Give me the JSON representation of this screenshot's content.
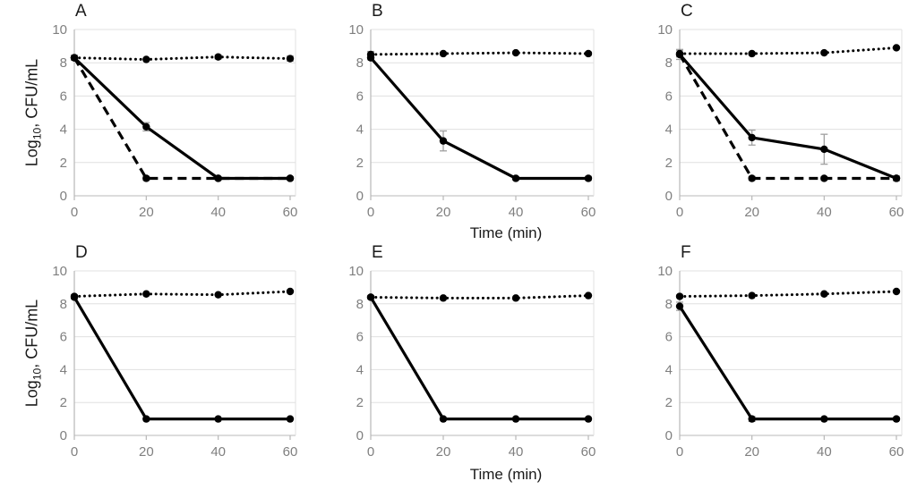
{
  "figure": {
    "background": "#ffffff",
    "ylabel_prefix": "Log",
    "ylabel_sub": "10",
    "ylabel_suffix": ", CFU/mL",
    "xlabel": "Time (min)"
  },
  "axes": {
    "ylim": [
      0,
      10
    ],
    "xlim": [
      0,
      60
    ],
    "yticks": [
      0,
      2,
      4,
      6,
      8,
      10
    ],
    "xticks": [
      0,
      20,
      40,
      60
    ],
    "grid": true,
    "tick_color": "#7f7f7f",
    "grid_color": "#e0e0e0",
    "axis_color": "#b8b8b8",
    "series_color": "#000000",
    "error_bar_color": "#a0a0a0"
  },
  "chart_data": [
    {
      "type": "line",
      "panel": "A",
      "x": [
        0,
        20,
        40,
        60
      ],
      "series": [
        {
          "name": "dotted-series",
          "style": "dotted",
          "values": [
            8.3,
            8.2,
            8.35,
            8.25
          ],
          "err": [
            0.15,
            0,
            0.12,
            0.15
          ]
        },
        {
          "name": "solid-series",
          "style": "solid",
          "values": [
            8.3,
            4.15,
            1.05,
            1.05
          ],
          "err": [
            0.15,
            0.25,
            0.1,
            0.1
          ]
        },
        {
          "name": "dashed-series",
          "style": "dashed",
          "values": [
            8.3,
            1.05,
            1.05,
            1.05
          ],
          "err": [
            0,
            0.12,
            0,
            0
          ]
        }
      ]
    },
    {
      "type": "line",
      "panel": "B",
      "x": [
        0,
        20,
        40,
        60
      ],
      "series": [
        {
          "name": "dotted-series",
          "style": "dotted",
          "values": [
            8.5,
            8.55,
            8.6,
            8.55
          ],
          "err": [
            0.18,
            0,
            0,
            0.1
          ]
        },
        {
          "name": "solid-series",
          "style": "solid",
          "values": [
            8.3,
            3.3,
            1.05,
            1.05
          ],
          "err": [
            0.12,
            0.6,
            0.1,
            0.12
          ]
        }
      ]
    },
    {
      "type": "line",
      "panel": "C",
      "x": [
        0,
        20,
        40,
        60
      ],
      "series": [
        {
          "name": "dotted-series",
          "style": "dotted",
          "values": [
            8.55,
            8.55,
            8.6,
            8.9
          ],
          "err": [
            0.2,
            0,
            0,
            0
          ]
        },
        {
          "name": "solid-series",
          "style": "solid",
          "values": [
            8.5,
            3.5,
            2.8,
            1.05
          ],
          "err": [
            0.3,
            0.45,
            0.9,
            0.15
          ]
        },
        {
          "name": "dashed-series",
          "style": "dashed",
          "values": [
            8.5,
            1.05,
            1.05,
            1.05
          ],
          "err": [
            0,
            0.12,
            0.1,
            0.1
          ]
        }
      ]
    },
    {
      "type": "line",
      "panel": "D",
      "x": [
        0,
        20,
        40,
        60
      ],
      "series": [
        {
          "name": "dotted-series",
          "style": "dotted",
          "values": [
            8.45,
            8.6,
            8.55,
            8.75
          ],
          "err": [
            0.1,
            0,
            0,
            0
          ]
        },
        {
          "name": "solid-series",
          "style": "solid",
          "values": [
            8.4,
            1.0,
            1.0,
            1.0
          ],
          "err": [
            0.1,
            0.08,
            0,
            0
          ]
        }
      ]
    },
    {
      "type": "line",
      "panel": "E",
      "x": [
        0,
        20,
        40,
        60
      ],
      "series": [
        {
          "name": "dotted-series",
          "style": "dotted",
          "values": [
            8.4,
            8.35,
            8.35,
            8.5
          ],
          "err": [
            0.1,
            0,
            0,
            0
          ]
        },
        {
          "name": "solid-series",
          "style": "solid",
          "values": [
            8.4,
            1.0,
            1.0,
            1.0
          ],
          "err": [
            0.1,
            0.08,
            0,
            0.08
          ]
        }
      ]
    },
    {
      "type": "line",
      "panel": "F",
      "x": [
        0,
        20,
        40,
        60
      ],
      "series": [
        {
          "name": "dotted-series",
          "style": "dotted",
          "values": [
            8.45,
            8.5,
            8.6,
            8.75
          ],
          "err": [
            0.08,
            0,
            0,
            0
          ]
        },
        {
          "name": "solid-series",
          "style": "solid",
          "values": [
            7.85,
            1.0,
            1.0,
            1.0
          ],
          "err": [
            0.25,
            0.15,
            0,
            0.1
          ]
        }
      ]
    }
  ]
}
